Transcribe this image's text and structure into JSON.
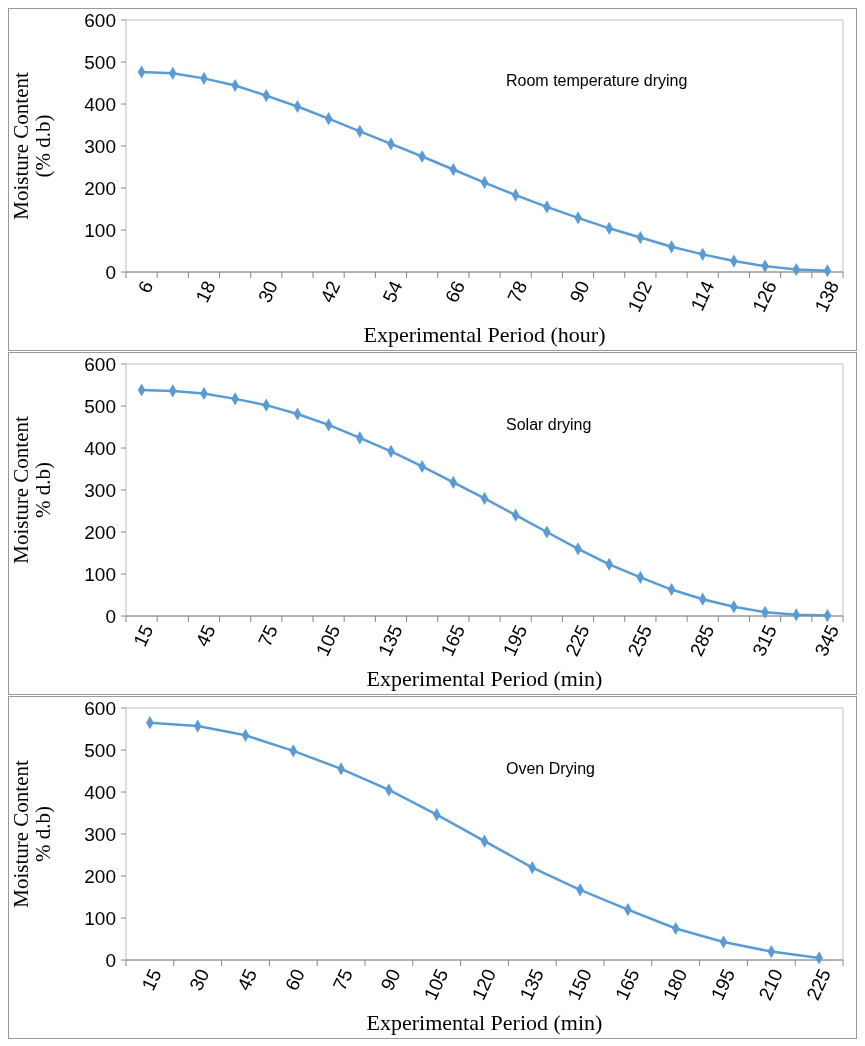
{
  "chart_data": [
    {
      "type": "line",
      "title": "Room temperature drying",
      "xlabel": "Experimental Period (hour)",
      "ylabel": "Moisture Content (% d.b)",
      "categories": [
        "6",
        null,
        "18",
        null,
        "30",
        null,
        "42",
        null,
        "54",
        null,
        "66",
        null,
        "78",
        null,
        "90",
        null,
        "102",
        null,
        "114",
        null,
        "126",
        null,
        "138"
      ],
      "series": [
        {
          "color": "#5b9bd5",
          "values": [
            476,
            473,
            461,
            444,
            420,
            394,
            365,
            335,
            305,
            275,
            244,
            213,
            183,
            155,
            129,
            104,
            82,
            60,
            42,
            26,
            14,
            6,
            3
          ]
        }
      ],
      "ylim": [
        0,
        600
      ],
      "yticks": [
        0,
        100,
        200,
        300,
        400,
        500,
        600
      ],
      "marker": "diamond",
      "grid": false
    },
    {
      "type": "line",
      "title": "Solar drying",
      "xlabel": "Experimental Period (min)",
      "ylabel": "Moisture Content % d.b)",
      "categories": [
        "15",
        null,
        "45",
        null,
        "75",
        null,
        "105",
        null,
        "135",
        null,
        "165",
        null,
        "195",
        null,
        "225",
        null,
        "255",
        null,
        "285",
        null,
        "315",
        null,
        "345"
      ],
      "series": [
        {
          "color": "#5b9bd5",
          "values": [
            538,
            536,
            530,
            517,
            502,
            481,
            455,
            424,
            392,
            356,
            318,
            280,
            240,
            200,
            160,
            123,
            92,
            63,
            40,
            22,
            9,
            3,
            1
          ]
        }
      ],
      "ylim": [
        0,
        600
      ],
      "yticks": [
        0,
        100,
        200,
        300,
        400,
        500,
        600
      ],
      "marker": "diamond",
      "grid": false
    },
    {
      "type": "line",
      "title": "Oven Drying",
      "xlabel": "Experimental Period (min)",
      "ylabel": "Moisture Content % d.b)",
      "categories": [
        "15",
        "30",
        "45",
        "60",
        "75",
        "90",
        "105",
        "120",
        "135",
        "150",
        "165",
        "180",
        "195",
        "210",
        "225"
      ],
      "series": [
        {
          "color": "#5b9bd5",
          "values": [
            565,
            557,
            535,
            498,
            455,
            405,
            346,
            283,
            220,
            167,
            120,
            75,
            43,
            20,
            5
          ]
        }
      ],
      "ylim": [
        0,
        600
      ],
      "yticks": [
        0,
        100,
        200,
        300,
        400,
        500,
        600
      ],
      "marker": "diamond",
      "grid": false
    }
  ]
}
